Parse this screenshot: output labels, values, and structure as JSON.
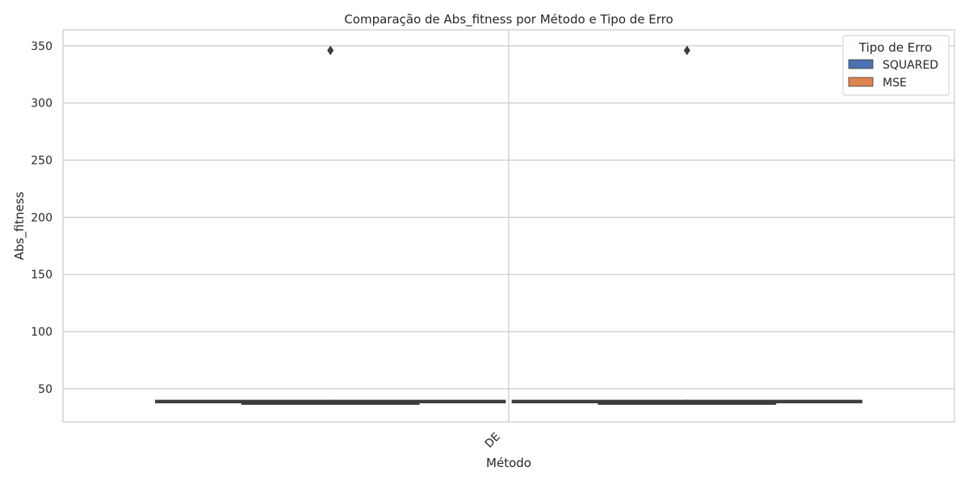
{
  "chart_data": {
    "type": "box",
    "title": "Comparação de Abs_fitness por Método e Tipo de Erro",
    "xlabel": "Método",
    "ylabel": "Abs_fitness",
    "categories": [
      "DE"
    ],
    "ylim": [
      21.0,
      364.0
    ],
    "yticks": [
      50,
      100,
      150,
      200,
      250,
      300,
      350
    ],
    "grid": true,
    "legend": {
      "title": "Tipo de Erro",
      "position": "top-right"
    },
    "series": [
      {
        "name": "SQUARED",
        "color": "#4c72b0",
        "boxes": [
          {
            "category": "DE",
            "whisker_low": 37.0,
            "q1": 37.8,
            "median": 38.8,
            "q3": 39.8,
            "whisker_high": 40.5,
            "outliers": [
              346.0
            ]
          }
        ]
      },
      {
        "name": "MSE",
        "color": "#dd8452",
        "boxes": [
          {
            "category": "DE",
            "whisker_low": 37.0,
            "q1": 37.8,
            "median": 38.8,
            "q3": 39.8,
            "whisker_high": 40.5,
            "outliers": [
              346.0
            ]
          }
        ]
      }
    ]
  }
}
